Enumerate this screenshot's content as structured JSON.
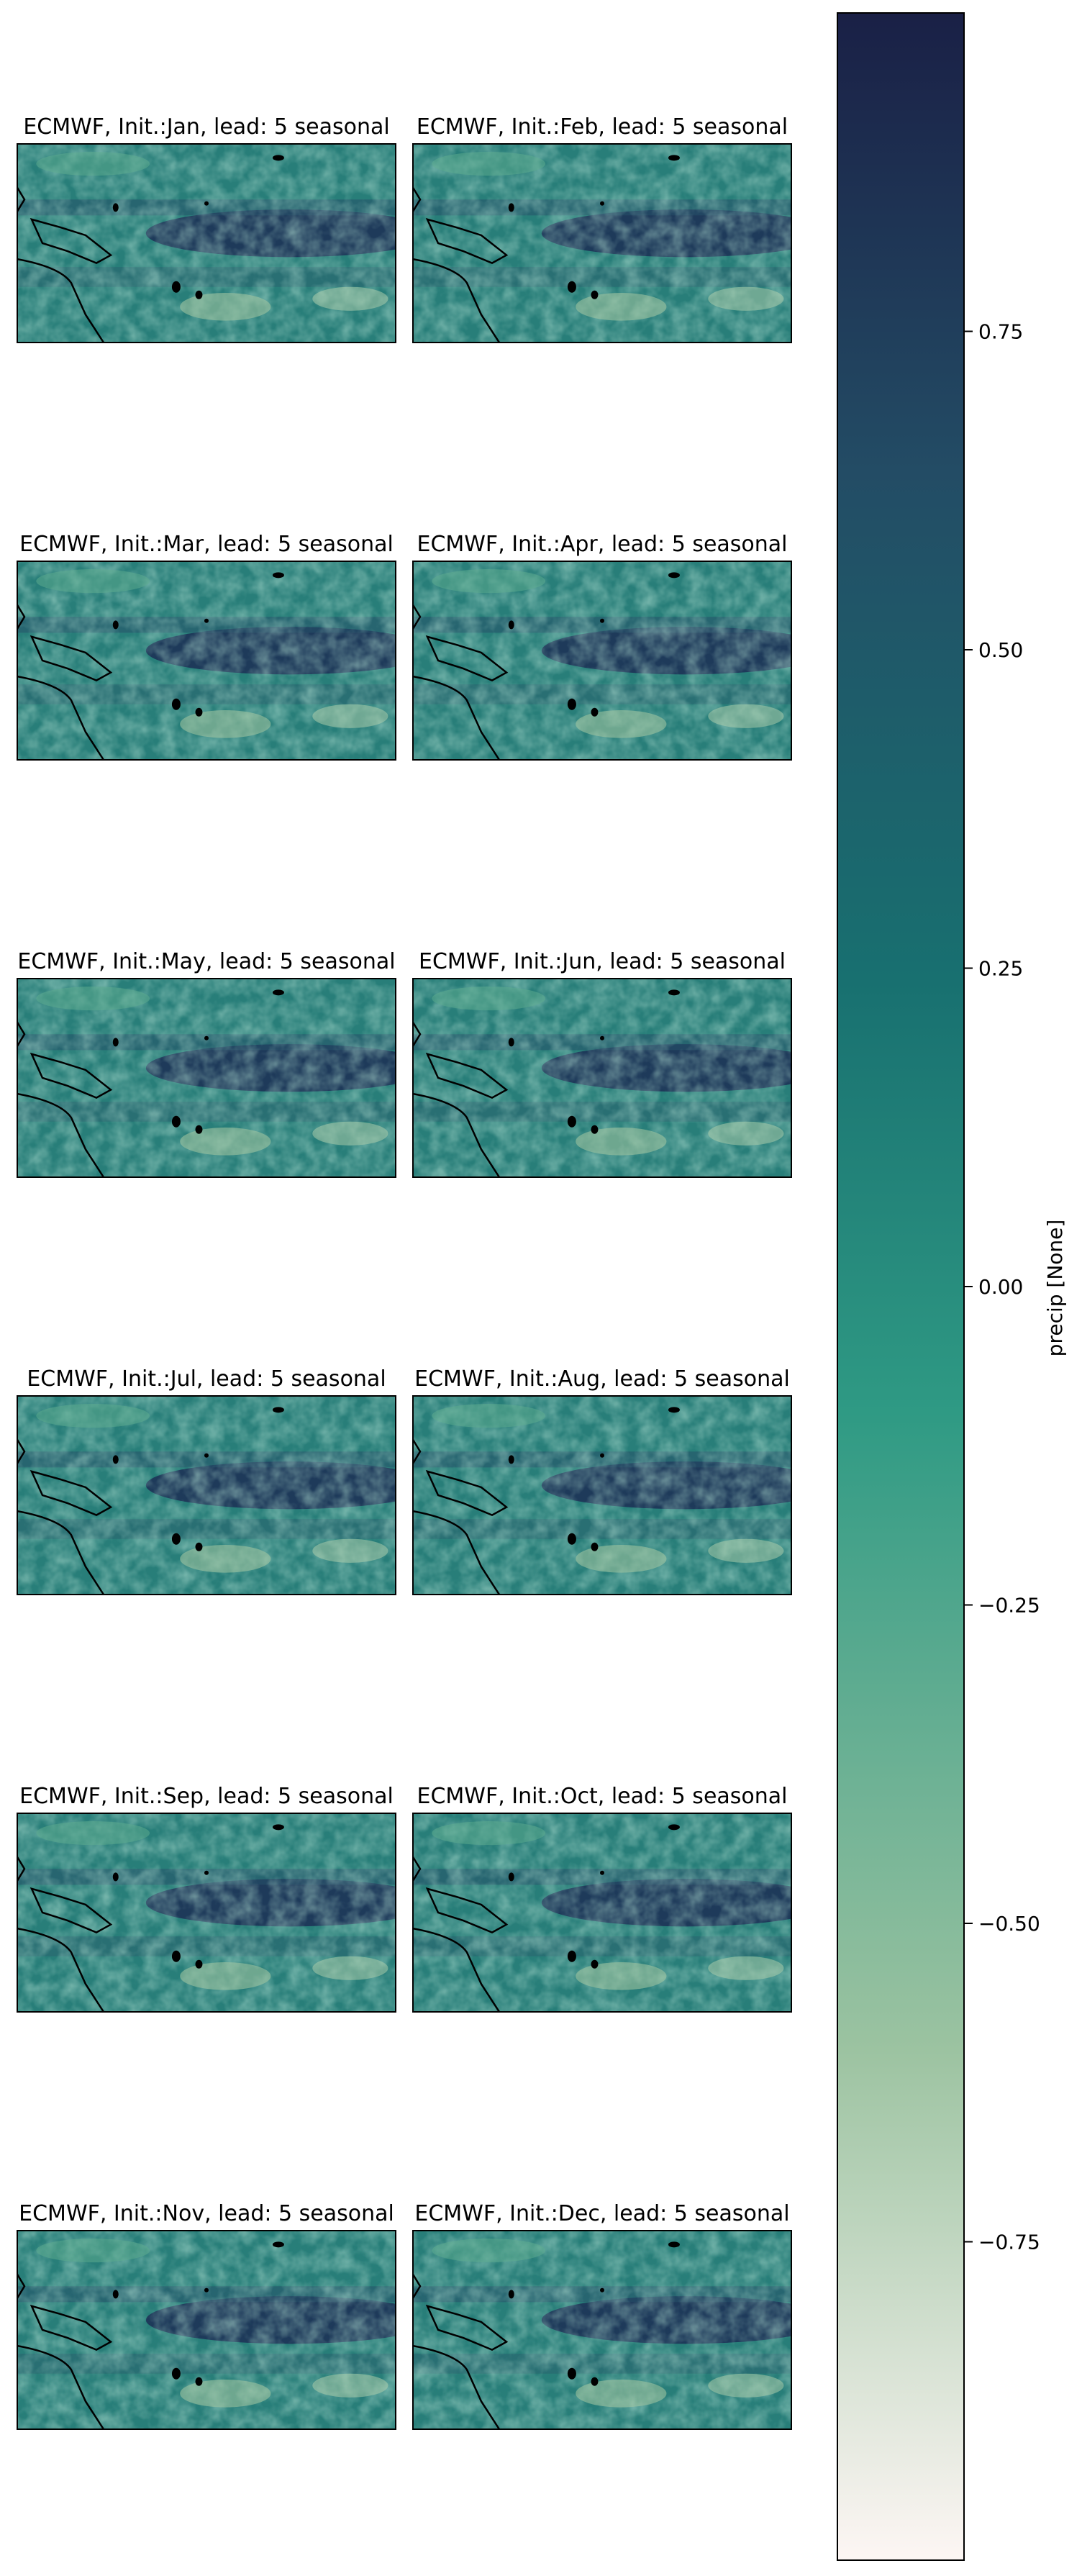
{
  "figure": {
    "panels": [
      {
        "title": "ECMWF, Init.:Jan, lead: 5 seasonal"
      },
      {
        "title": "ECMWF, Init.:Feb, lead: 5 seasonal"
      },
      {
        "title": "ECMWF, Init.:Mar, lead: 5 seasonal"
      },
      {
        "title": "ECMWF, Init.:Apr, lead: 5 seasonal"
      },
      {
        "title": "ECMWF, Init.:May, lead: 5 seasonal"
      },
      {
        "title": "ECMWF, Init.:Jun, lead: 5 seasonal"
      },
      {
        "title": "ECMWF, Init.:Jul, lead: 5 seasonal"
      },
      {
        "title": "ECMWF, Init.:Aug, lead: 5 seasonal"
      },
      {
        "title": "ECMWF, Init.:Sep, lead: 5 seasonal"
      },
      {
        "title": "ECMWF, Init.:Oct, lead: 5 seasonal"
      },
      {
        "title": "ECMWF, Init.:Nov, lead: 5 seasonal"
      },
      {
        "title": "ECMWF, Init.:Dec, lead: 5 seasonal"
      }
    ],
    "colorbar": {
      "label": "precip [None]",
      "range": [
        -1,
        1
      ],
      "ticks": [
        "0.75",
        "0.50",
        "0.25",
        "0.00",
        "−0.25",
        "−0.50",
        "−0.75"
      ],
      "tick_values": [
        0.75,
        0.5,
        0.25,
        0.0,
        -0.25,
        -0.5,
        -0.75
      ],
      "colors": [
        "#fdf6f4",
        "#9cc3a1",
        "#2f9a84",
        "#187070",
        "#234c65",
        "#1a2046"
      ]
    }
  }
}
